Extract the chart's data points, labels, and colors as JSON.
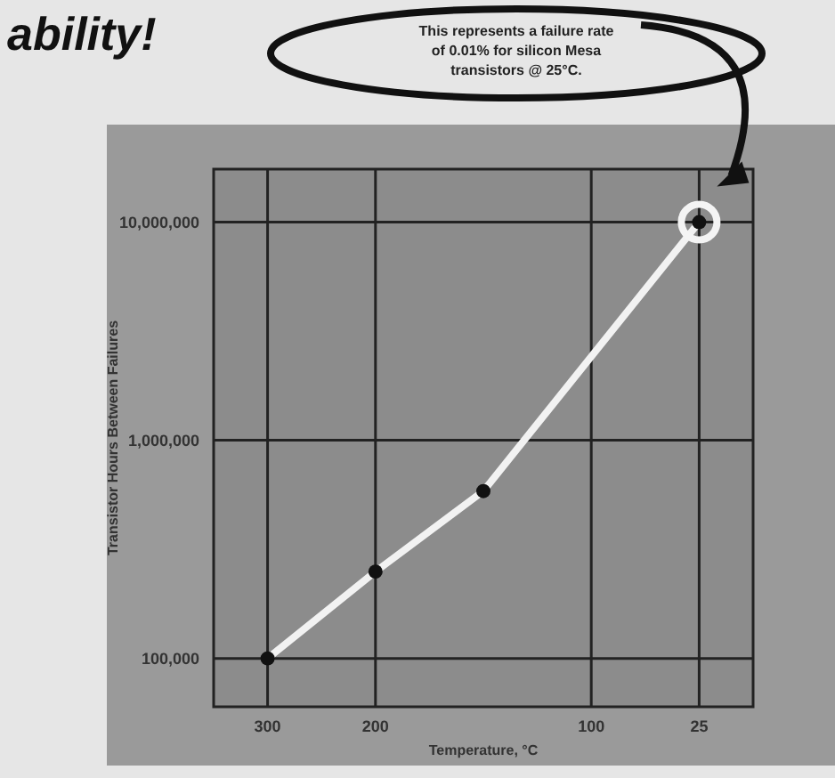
{
  "chart_data": {
    "type": "line",
    "title": "ability!",
    "xlabel": "Temperature, °C",
    "ylabel": "Transistor Hours Between Failures",
    "annotations": [
      "This represents a failure rate of 0.01% for silicon Mesa transistors @ 25°C."
    ],
    "categories": [
      "300",
      "200",
      null,
      "100",
      "25"
    ],
    "series": [
      {
        "type": "line",
        "color": "#f2f2f2",
        "marker": "none",
        "values": [
          100000,
          250000,
          585000,
          null,
          10000000
        ]
      },
      {
        "type": "scatter",
        "color": "#111111",
        "marker": "circle",
        "values": [
          100000,
          250000,
          585000,
          null,
          10000000
        ]
      }
    ],
    "log": "y",
    "grid": true,
    "ylim": [
      60000,
      17500000
    ],
    "yticks": [
      {
        "value": 100000,
        "label": "100,000"
      },
      {
        "value": 1000000,
        "label": "1,000,000"
      },
      {
        "value": 10000000,
        "label": "10,000,000"
      }
    ]
  }
}
